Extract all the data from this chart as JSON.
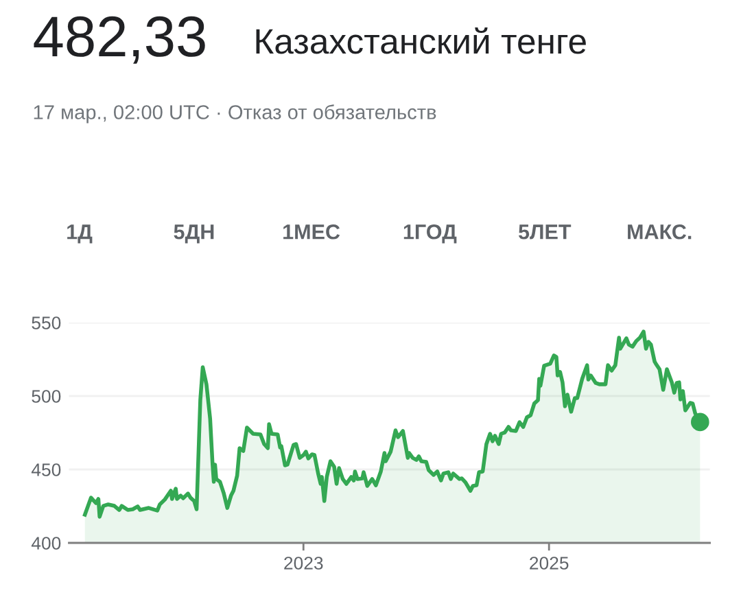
{
  "chart_data": {
    "type": "area",
    "title": "482,33",
    "subtitle": "Казахстанский тенге",
    "annotations": [
      "17 мар., 02:00 UTC · Отказ от обязательств",
      "1Д",
      "5ДН",
      "1МЕС",
      "1ГОД",
      "5ЛЕТ",
      "МАКС."
    ],
    "xlim": [
      2021.09,
      2026.31
    ],
    "xticks": [
      2023,
      2025
    ],
    "ylim": [
      400,
      550
    ],
    "yticks": [
      400,
      450,
      500,
      550
    ],
    "grid": "y",
    "series": [
      {
        "color": "#34a853",
        "x": [
          2021.22,
          2021.27,
          2021.31,
          2021.33,
          2021.34,
          2021.37,
          2021.41,
          2021.46,
          2021.5,
          2021.52,
          2021.57,
          2021.61,
          2021.65,
          2021.67,
          2021.74,
          2021.81,
          2021.83,
          2021.87,
          2021.92,
          2021.93,
          2021.96,
          2021.97,
          2022.0,
          2022.02,
          2022.06,
          2022.08,
          2022.11,
          2022.13,
          2022.16,
          2022.18,
          2022.21,
          2022.24,
          2022.26,
          2022.27,
          2022.28,
          2022.29,
          2022.32,
          2022.35,
          2022.38,
          2022.41,
          2022.43,
          2022.46,
          2022.48,
          2022.51,
          2022.54,
          2022.59,
          2022.65,
          2022.68,
          2022.71,
          2022.72,
          2022.74,
          2022.79,
          2022.81,
          2022.82,
          2022.85,
          2022.87,
          2022.92,
          2022.94,
          2022.97,
          2023.0,
          2023.02,
          2023.04,
          2023.07,
          2023.09,
          2023.12,
          2023.14,
          2023.15,
          2023.17,
          2023.19,
          2023.22,
          2023.25,
          2023.27,
          2023.29,
          2023.32,
          2023.35,
          2023.39,
          2023.41,
          2023.42,
          2023.44,
          2023.48,
          2023.49,
          2023.52,
          2023.56,
          2023.59,
          2023.63,
          2023.66,
          2023.67,
          2023.71,
          2023.75,
          2023.77,
          2023.81,
          2023.85,
          2023.86,
          2023.89,
          2023.92,
          2023.94,
          2023.96,
          2024.0,
          2024.02,
          2024.06,
          2024.09,
          2024.12,
          2024.14,
          2024.18,
          2024.2,
          2024.22,
          2024.27,
          2024.29,
          2024.32,
          2024.36,
          2024.38,
          2024.41,
          2024.43,
          2024.46,
          2024.49,
          2024.52,
          2024.54,
          2024.56,
          2024.59,
          2024.61,
          2024.64,
          2024.67,
          2024.69,
          2024.73,
          2024.76,
          2024.79,
          2024.82,
          2024.85,
          2024.88,
          2024.91,
          2024.92,
          2024.93,
          2024.96,
          2025.01,
          2025.04,
          2025.06,
          2025.07,
          2025.09,
          2025.11,
          2025.13,
          2025.15,
          2025.18,
          2025.21,
          2025.23,
          2025.27,
          2025.31,
          2025.32,
          2025.34,
          2025.38,
          2025.41,
          2025.46,
          2025.48,
          2025.51,
          2025.54,
          2025.57,
          2025.58,
          2025.63,
          2025.65,
          2025.68,
          2025.71,
          2025.74,
          2025.77,
          2025.79,
          2025.81,
          2025.83,
          2025.86,
          2025.87,
          2025.9,
          2025.93,
          2025.96,
          2026.0,
          2026.02,
          2026.04,
          2026.06,
          2026.07,
          2026.09,
          2026.11,
          2026.15,
          2026.17,
          2026.19,
          2026.23
        ],
        "values": [
          419.2,
          430.8,
          427.1,
          429.9,
          417.8,
          425.2,
          426.2,
          425.2,
          422.4,
          425.2,
          422.4,
          422.9,
          424.8,
          422.4,
          423.8,
          422.0,
          426.2,
          429.4,
          435.5,
          429.9,
          436.9,
          429.9,
          432.2,
          430.4,
          433.6,
          430.8,
          428.5,
          422.9,
          497.2,
          519.6,
          508.0,
          484.6,
          453.3,
          441.6,
          453.3,
          443.5,
          441.6,
          434.1,
          423.8,
          432.2,
          435.5,
          445.8,
          464.5,
          462.6,
          478.5,
          474.3,
          473.8,
          467.3,
          464.5,
          480.8,
          474.3,
          473.8,
          465.0,
          465.9,
          452.8,
          453.3,
          466.8,
          467.3,
          457.9,
          459.8,
          462.1,
          457.5,
          460.3,
          459.8,
          447.2,
          440.2,
          444.9,
          428.5,
          444.9,
          455.6,
          451.9,
          440.2,
          450.9,
          443.5,
          440.2,
          444.9,
          442.5,
          448.6,
          443.5,
          443.9,
          448.1,
          438.8,
          443.5,
          439.2,
          448.6,
          461.2,
          455.6,
          462.1,
          476.6,
          472.0,
          476.2,
          457.9,
          461.2,
          457.9,
          456.5,
          458.9,
          455.6,
          455.1,
          449.5,
          446.3,
          448.6,
          442.5,
          447.2,
          448.1,
          443.5,
          447.2,
          443.5,
          443.9,
          441.2,
          435.5,
          438.8,
          439.2,
          448.1,
          448.6,
          467.3,
          474.3,
          469.2,
          472.9,
          467.3,
          474.3,
          475.2,
          479.0,
          476.6,
          476.2,
          482.2,
          479.0,
          485.5,
          486.9,
          494.9,
          497.2,
          511.7,
          507.0,
          520.6,
          522.0,
          527.6,
          526.6,
          514.0,
          516.4,
          509.3,
          493.0,
          500.9,
          489.3,
          498.6,
          498.6,
          511.7,
          521.0,
          511.2,
          514.0,
          508.9,
          508.0,
          508.0,
          521.0,
          517.3,
          521.0,
          539.7,
          532.2,
          539.3,
          535.0,
          533.6,
          537.4,
          539.7,
          543.9,
          532.2,
          536.9,
          535.0,
          523.4,
          522.0,
          518.2,
          504.2,
          518.2,
          509.3,
          502.3,
          508.9,
          509.3,
          497.7,
          503.3,
          490.2,
          495.3,
          494.9,
          488.3,
          482.3
        ]
      },
      {
        "type": "scatter",
        "color": "#34a853",
        "x": [
          2026.23
        ],
        "values": [
          482.3
        ],
        "marker": "circle"
      }
    ]
  }
}
